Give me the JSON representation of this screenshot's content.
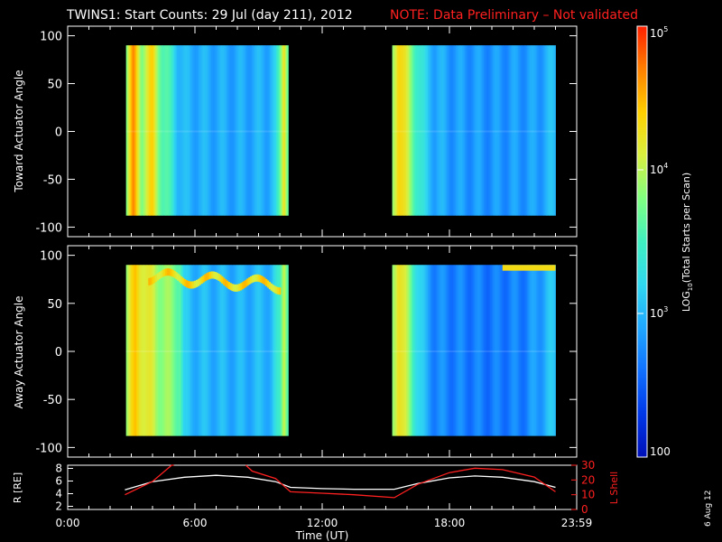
{
  "title": {
    "main": "TWINS1: Start Counts: 29 Jul (day 211), 2012",
    "note": "NOTE: Data Preliminary – Not validated"
  },
  "footer": {
    "date_stamp": "6 Aug 12"
  },
  "colors": {
    "background": "#000000",
    "axis": "#ffffff",
    "note": "#ff2020",
    "r_line": "#ffffff",
    "lshell_line": "#ff2020",
    "palette": [
      "#0010b8",
      "#0038e8",
      "#1070ff",
      "#20a8ff",
      "#30d8f0",
      "#40f0c0",
      "#80ff80",
      "#d8f040",
      "#ffd000",
      "#ff8000",
      "#ff2000"
    ]
  },
  "chart_data": [
    {
      "id": "toward",
      "type": "heatmap",
      "ylabel": "Toward Actuator Angle",
      "ylim": [
        -110,
        110
      ],
      "yticks": [
        -100,
        -50,
        0,
        50,
        100
      ],
      "xlim": [
        0,
        24
      ],
      "xticks": [
        0,
        6,
        12,
        18,
        24
      ],
      "angle_range": [
        -88,
        90
      ],
      "segments": [
        {
          "t_start": 2.75,
          "t_end": 10.4,
          "time_profile": [
            [
              2.75,
              3.8
            ],
            [
              3.1,
              4.6
            ],
            [
              3.5,
              3.9
            ],
            [
              4.0,
              4.3
            ],
            [
              4.5,
              3.6
            ],
            [
              4.9,
              3.4
            ],
            [
              5.2,
              3.1
            ],
            [
              5.4,
              3.0
            ],
            [
              5.6,
              2.95
            ],
            [
              6.0,
              2.95
            ],
            [
              8.0,
              2.9
            ],
            [
              9.4,
              2.95
            ],
            [
              9.8,
              3.1
            ],
            [
              10.0,
              3.6
            ],
            [
              10.2,
              4.4
            ],
            [
              10.4,
              3.7
            ]
          ]
        },
        {
          "t_start": 15.3,
          "t_end": 23.0,
          "time_profile": [
            [
              15.3,
              3.8
            ],
            [
              15.6,
              4.5
            ],
            [
              16.0,
              4.0
            ],
            [
              16.5,
              3.5
            ],
            [
              16.9,
              3.1
            ],
            [
              17.3,
              2.95
            ],
            [
              18.0,
              2.85
            ],
            [
              20.0,
              2.8
            ],
            [
              22.2,
              2.85
            ],
            [
              22.5,
              2.95
            ],
            [
              23.0,
              3.0
            ]
          ]
        }
      ]
    },
    {
      "id": "away",
      "type": "heatmap",
      "ylabel": "Away Actuator Angle",
      "ylim": [
        -110,
        110
      ],
      "yticks": [
        -100,
        -50,
        0,
        50,
        100
      ],
      "xlim": [
        0,
        24
      ],
      "xticks": [
        0,
        6,
        12,
        18,
        24
      ],
      "angle_range": [
        -88,
        90
      ],
      "segments": [
        {
          "t_start": 2.75,
          "t_end": 10.4,
          "time_profile": [
            [
              2.75,
              3.9
            ],
            [
              3.2,
              4.4
            ],
            [
              3.8,
              4.1
            ],
            [
              4.4,
              3.9
            ],
            [
              4.9,
              3.8
            ],
            [
              5.3,
              3.7
            ],
            [
              5.5,
              3.05
            ],
            [
              6.0,
              3.0
            ],
            [
              8.0,
              2.95
            ],
            [
              9.6,
              3.0
            ],
            [
              10.0,
              3.4
            ],
            [
              10.2,
              4.2
            ],
            [
              10.4,
              3.6
            ]
          ]
        },
        {
          "t_start": 15.3,
          "t_end": 23.0,
          "time_profile": [
            [
              15.3,
              3.8
            ],
            [
              15.6,
              4.4
            ],
            [
              16.0,
              3.9
            ],
            [
              16.5,
              3.3
            ],
            [
              16.9,
              2.9
            ],
            [
              17.3,
              2.75
            ],
            [
              18.0,
              2.7
            ],
            [
              20.0,
              2.65
            ],
            [
              21.5,
              2.7
            ],
            [
              22.2,
              2.85
            ],
            [
              22.6,
              3.0
            ],
            [
              23.0,
              3.05
            ]
          ]
        }
      ]
    },
    {
      "id": "orbit",
      "type": "line",
      "xlabel": "Time (UT)",
      "xtick_labels": [
        "0:00",
        "6:00",
        "12:00",
        "18:00",
        "23:59"
      ],
      "xticks": [
        0,
        6,
        12,
        18,
        24
      ],
      "xlim": [
        0,
        24
      ],
      "left_axis": {
        "label": "R [RE]",
        "ylim": [
          1.5,
          8.5
        ],
        "yticks": [
          2,
          4,
          6,
          8
        ]
      },
      "right_axis": {
        "label": "L Shell",
        "ylim": [
          0,
          30
        ],
        "yticks": [
          0,
          10,
          20,
          30
        ]
      },
      "series": [
        {
          "name": "R",
          "axis": "left",
          "points": [
            [
              2.7,
              4.6
            ],
            [
              4.0,
              5.9
            ],
            [
              5.5,
              6.6
            ],
            [
              7.0,
              6.9
            ],
            [
              8.5,
              6.6
            ],
            [
              9.8,
              5.9
            ],
            [
              10.5,
              5.0
            ],
            [
              12.0,
              4.8
            ],
            [
              13.5,
              4.7
            ],
            [
              15.0,
              4.7
            ],
            [
              15.4,
              4.7
            ],
            [
              16.5,
              5.6
            ],
            [
              18.0,
              6.5
            ],
            [
              19.2,
              6.8
            ],
            [
              20.5,
              6.6
            ],
            [
              22.0,
              5.9
            ],
            [
              23.0,
              5.0
            ]
          ]
        },
        {
          "name": "L Shell",
          "axis": "right",
          "points": [
            [
              2.7,
              10
            ],
            [
              4.0,
              19
            ],
            [
              4.9,
              31
            ],
            [
              5.0,
              31
            ]
          ]
        },
        {
          "name": "L Shell b",
          "axis": "right",
          "points": [
            [
              8.4,
              31
            ],
            [
              8.7,
              26
            ],
            [
              9.8,
              21
            ],
            [
              10.5,
              12
            ],
            [
              12.0,
              11
            ],
            [
              13.5,
              10
            ],
            [
              15.4,
              8
            ],
            [
              16.5,
              17
            ],
            [
              18.0,
              25
            ],
            [
              19.2,
              28
            ],
            [
              20.5,
              27
            ],
            [
              22.0,
              22
            ],
            [
              23.0,
              12
            ]
          ]
        }
      ]
    },
    {
      "id": "colorbar",
      "type": "heatmap",
      "label_prefix": "LOG",
      "label_sub": "10",
      "label_suffix": "(Total Starts per Scan)",
      "range_log10": [
        2,
        5
      ],
      "ticks": [
        {
          "value": 5,
          "base": "10",
          "exp": "5"
        },
        {
          "value": 4,
          "base": "10",
          "exp": "4"
        },
        {
          "value": 3,
          "base": "10",
          "exp": "3"
        },
        {
          "value": 2,
          "base": "100",
          "exp": ""
        }
      ]
    }
  ]
}
